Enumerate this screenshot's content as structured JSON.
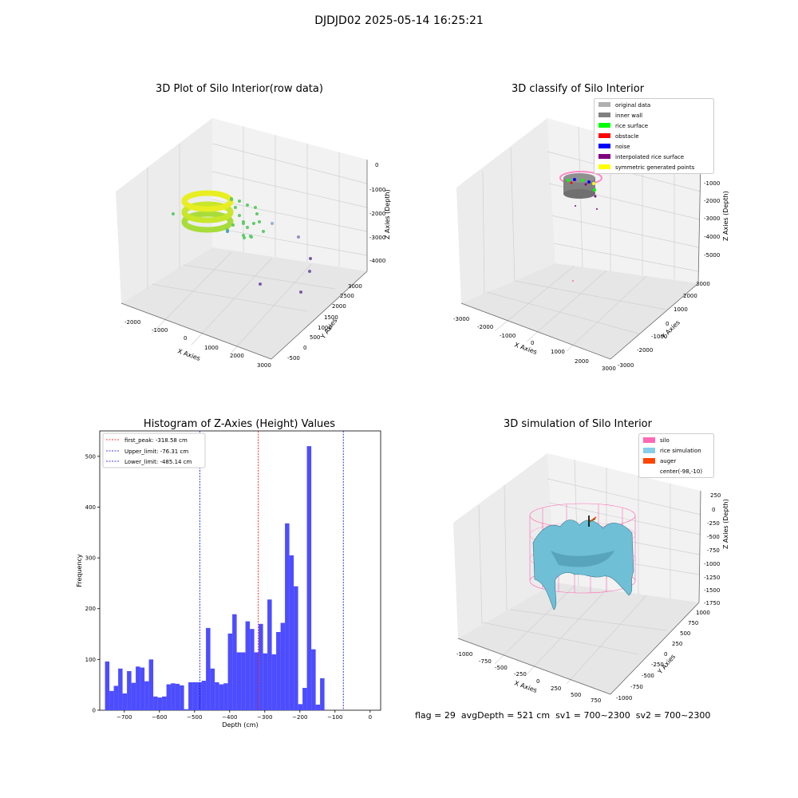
{
  "figure_title": "DJDJD02 2025-05-14 16:25:21",
  "status": {
    "flag": "flag = 29",
    "avg_depth": "avgDepth = 521 cm",
    "sv1": "sv1 = 700~2300",
    "sv2": "sv2 = 700~2300"
  },
  "colors": {
    "bar": "#4d4dff",
    "peak_line": "#ff0000",
    "limit_line": "#0000ff",
    "pane": "#f2f2f2",
    "silo": "#ff69b4",
    "rice": "#87ceeb",
    "auger": "#ff4500"
  },
  "chart_data": [
    {
      "type": "scatter3d",
      "title": "3D Plot of Silo Interior(row data)",
      "xlabel": "X Axies",
      "ylabel": "Y Axies",
      "zlabel": "Z Axies (Depth)",
      "xticks": [
        "-2000",
        "-1000",
        "0",
        "1000",
        "2000",
        "3000"
      ],
      "yticks": [
        "-500",
        "0",
        "500",
        "1000",
        "1500",
        "2000",
        "2500",
        "3000"
      ],
      "zticks": [
        "0",
        "-1000",
        "-2000",
        "-3000",
        "-4000"
      ]
    },
    {
      "type": "scatter3d",
      "title": "3D classify of Silo Interior",
      "xlabel": "X Axies",
      "ylabel": "Y Axies",
      "zlabel": "Z Axies (Depth)",
      "xticks": [
        "-3000",
        "-2000",
        "-1000",
        "0",
        "1000",
        "2000",
        "3000"
      ],
      "yticks": [
        "-3000",
        "-2000",
        "-1000",
        "0",
        "1000",
        "2000",
        "3000"
      ],
      "zticks": [
        "-1000",
        "-2000",
        "-3000",
        "-4000",
        "-5000"
      ],
      "legend": [
        {
          "label": "original data",
          "color": "#b0b0b0"
        },
        {
          "label": "inner wall",
          "color": "#808080"
        },
        {
          "label": "rice surface",
          "color": "#00ff00"
        },
        {
          "label": "obstacle",
          "color": "#ff0000"
        },
        {
          "label": "noise",
          "color": "#0000ff"
        },
        {
          "label": "interpolated rice surface",
          "color": "#800080"
        },
        {
          "label": "symmetric generated points",
          "color": "#ffff00"
        }
      ]
    },
    {
      "type": "bar",
      "title": "Histogram of Z-Axies (Height) Values",
      "xlabel": "Depth (cm)",
      "ylabel": "Frequency",
      "xlim": [
        -770,
        30
      ],
      "ylim": [
        0,
        550
      ],
      "xticks": [
        -700,
        -600,
        -500,
        -400,
        -300,
        -200,
        -100,
        0
      ],
      "yticks": [
        0,
        100,
        200,
        300,
        400,
        500
      ],
      "bin_start": -755,
      "bin_width": 12.5,
      "values": [
        96,
        38,
        48,
        82,
        33,
        77,
        54,
        86,
        84,
        57,
        100,
        27,
        25,
        27,
        51,
        53,
        52,
        49,
        2,
        55,
        55,
        55,
        58,
        162,
        82,
        55,
        51,
        53,
        151,
        189,
        114,
        114,
        175,
        160,
        114,
        170,
        112,
        218,
        110,
        154,
        172,
        368,
        305,
        244,
        12,
        44,
        520,
        120,
        11,
        63
      ],
      "vlines": [
        {
          "label": "first_peak: -318.58 cm",
          "x": -318.58,
          "color": "#ff0000"
        },
        {
          "label": "Upper_limit: -76.31 cm",
          "x": -76.31,
          "color": "#0000ff"
        },
        {
          "label": "Lower_limit: -485.14 cm",
          "x": -485.14,
          "color": "#0000ff"
        }
      ]
    },
    {
      "type": "surface3d",
      "title": "3D simulation of Silo Interior",
      "xlabel": "X Axies",
      "ylabel": "Y Axies",
      "zlabel": "Z Axies (Depth)",
      "xticks": [
        "-1000",
        "-750",
        "-500",
        "-250",
        "0",
        "250",
        "500",
        "750"
      ],
      "yticks": [
        "-1000",
        "-750",
        "-500",
        "-250",
        "0",
        "250",
        "500",
        "750",
        "1000"
      ],
      "zticks": [
        "250",
        "0",
        "-250",
        "-500",
        "-750",
        "-1000",
        "-1250",
        "-1500",
        "-1750"
      ],
      "legend": [
        {
          "label": "silo",
          "color": "#ff69b4"
        },
        {
          "label": "rice simulation",
          "color": "#87ceeb"
        },
        {
          "label": "auger",
          "color": "#ff4500"
        },
        {
          "label": "center(-98,-10)",
          "color": ""
        }
      ]
    }
  ]
}
